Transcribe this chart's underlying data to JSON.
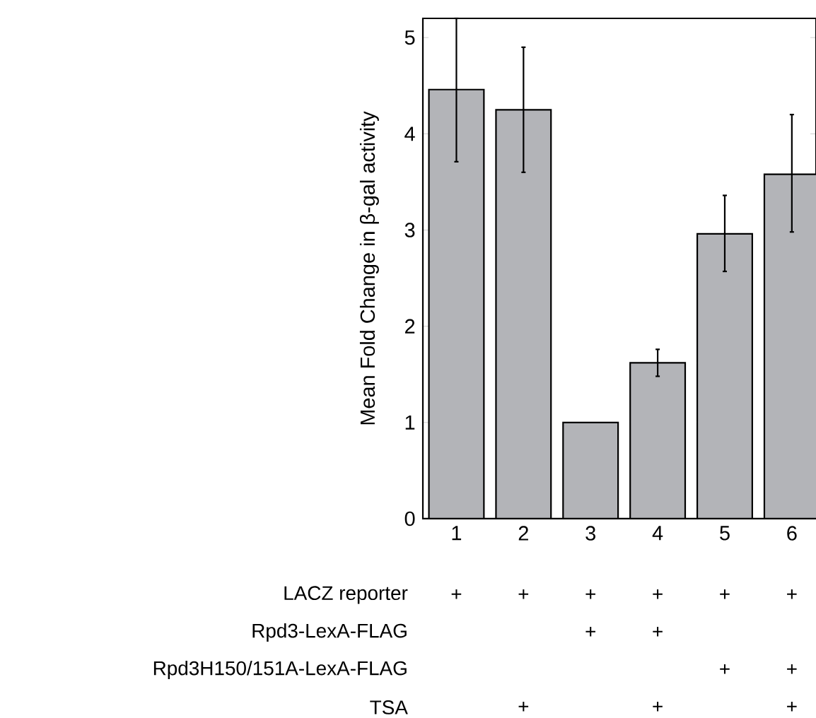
{
  "chart_data": {
    "type": "bar",
    "ylabel": "Mean Fold Change in β-gal activity",
    "categories": [
      "1",
      "2",
      "3",
      "4",
      "5",
      "6"
    ],
    "values": [
      4.46,
      4.25,
      1.0,
      1.62,
      2.96,
      3.58
    ],
    "errors": [
      [
        3.71,
        5.2
      ],
      [
        3.6,
        4.9
      ],
      null,
      [
        1.48,
        1.76
      ],
      [
        2.57,
        3.36
      ],
      [
        2.98,
        4.2
      ]
    ],
    "color": "#b3b4b8",
    "ylim": [
      0,
      5.2
    ],
    "yticks": [
      0,
      1,
      2,
      3,
      4,
      5
    ],
    "grid": false,
    "annotations": [
      "LACZ reporter",
      "+",
      "+",
      "+",
      "+",
      "+",
      "+",
      "Rpd3-LexA-FLAG",
      "+",
      "+",
      "Rpd3H150/151A-LexA-FLAG",
      "+",
      "+",
      "TSA",
      "+",
      "+",
      "+"
    ]
  }
}
